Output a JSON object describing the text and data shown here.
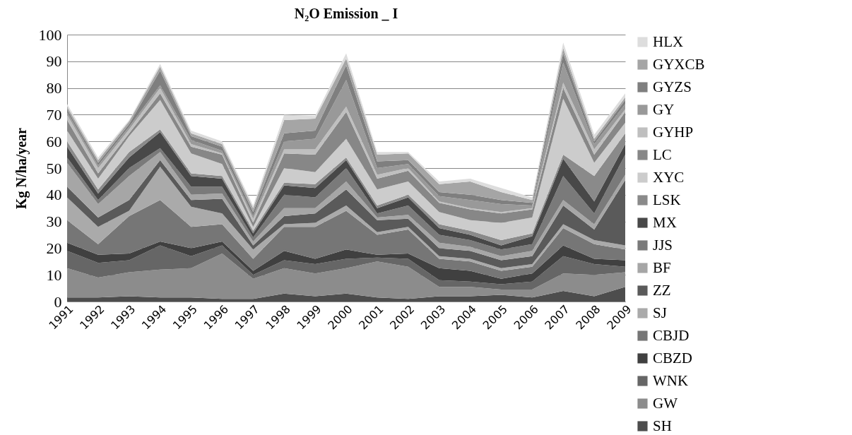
{
  "chart_data": {
    "type": "area",
    "stacked": true,
    "title": "N₂O Emission _ I",
    "ylabel": "Kg N/ha/year",
    "categories": [
      "1991",
      "1992",
      "1993",
      "1994",
      "1995",
      "1996",
      "1997",
      "1998",
      "1999",
      "2000",
      "2001",
      "2002",
      "2003",
      "2004",
      "2005",
      "2006",
      "2007",
      "2008",
      "2009"
    ],
    "ylim": [
      0,
      100
    ],
    "yticks": [
      0,
      10,
      20,
      30,
      40,
      50,
      60,
      70,
      80,
      90,
      100
    ],
    "grid": "y",
    "legend": "right",
    "series": [
      {
        "name": "SH",
        "color": "#4d4d4d",
        "values": [
          1.5,
          1.5,
          2,
          1.5,
          1.5,
          1,
          1,
          3,
          2,
          3,
          1.5,
          1,
          2,
          2,
          2.5,
          1.5,
          4,
          2,
          5.5
        ]
      },
      {
        "name": "GW",
        "color": "#8c8c8c",
        "values": [
          11,
          7.5,
          9,
          10.5,
          11,
          17,
          7.5,
          9.5,
          8.5,
          9.5,
          13.5,
          12,
          3.5,
          3.5,
          2,
          3,
          6.5,
          8,
          5.5
        ]
      },
      {
        "name": "WNK",
        "color": "#666666",
        "values": [
          6.5,
          5.5,
          4.5,
          9,
          4.5,
          3,
          1.5,
          3,
          3.5,
          3.5,
          1.5,
          3,
          2.5,
          2,
          2,
          3,
          6.5,
          4,
          2
        ]
      },
      {
        "name": "CBZD",
        "color": "#404040",
        "values": [
          3,
          3,
          2.5,
          1.5,
          3,
          1.5,
          1.5,
          3.5,
          2,
          3.5,
          1,
          2,
          4.5,
          4,
          2,
          3,
          4,
          2,
          2.5
        ]
      },
      {
        "name": "CBJD",
        "color": "#767676",
        "values": [
          8.5,
          4,
          14,
          15.5,
          8,
          6.5,
          4.5,
          9,
          12,
          14.5,
          7.5,
          9,
          3.5,
          3.5,
          3,
          2.5,
          6.5,
          5.5,
          4
        ]
      },
      {
        "name": "SJ",
        "color": "#aaaaaa",
        "values": [
          8.5,
          6.5,
          2,
          12.5,
          7.5,
          4,
          3.5,
          1,
          1.5,
          2,
          1,
          1,
          1,
          1,
          1,
          1,
          1.5,
          1.5,
          1.5
        ]
      },
      {
        "name": "ZZ",
        "color": "#5a5a5a",
        "values": [
          4,
          3.5,
          4,
          2.5,
          2.5,
          5.5,
          1.5,
          3,
          3.5,
          6,
          4.5,
          3,
          3,
          3,
          3,
          3,
          7,
          4,
          24.5
        ]
      },
      {
        "name": "BF",
        "color": "#a6a6a6",
        "values": [
          9,
          5,
          9,
          3,
          2,
          2,
          1.5,
          3,
          2,
          3,
          1,
          1.5,
          2,
          1.5,
          1.5,
          2,
          2,
          2,
          2
        ]
      },
      {
        "name": "JJS",
        "color": "#7a7a7a",
        "values": [
          2,
          1.5,
          3,
          1.5,
          3,
          2.5,
          1.5,
          5,
          4,
          5,
          1.5,
          3.5,
          3,
          2.5,
          2.5,
          2.5,
          9,
          4,
          7.5
        ]
      },
      {
        "name": "MX",
        "color": "#484848",
        "values": [
          4,
          2.5,
          4,
          6,
          4,
          3,
          1.5,
          3.5,
          3.5,
          3,
          2,
          3,
          2.5,
          2,
          1.5,
          3,
          6.5,
          4.5,
          4
        ]
      },
      {
        "name": "LSK",
        "color": "#8a8a8a",
        "values": [
          2,
          1.5,
          2,
          1,
          1,
          1,
          1,
          1,
          1.5,
          1,
          1,
          1,
          1.5,
          1.5,
          2,
          1,
          1.5,
          9.5,
          4
        ]
      },
      {
        "name": "XYC",
        "color": "#cccccc",
        "values": [
          4,
          4,
          6,
          11,
          7.5,
          4.5,
          1.5,
          5.5,
          4.5,
          7,
          6,
          5,
          4.5,
          4,
          6.5,
          6,
          21,
          5,
          4
        ]
      },
      {
        "name": "LC",
        "color": "#878787",
        "values": [
          4,
          2,
          1,
          2.5,
          2.5,
          3.5,
          1.5,
          5.5,
          6.5,
          10,
          4,
          4,
          3.5,
          4,
          3.5,
          3,
          4,
          3,
          4
        ]
      },
      {
        "name": "GYHP",
        "color": "#bfbfbf",
        "values": [
          2,
          2,
          1.5,
          2,
          1,
          0.5,
          1.5,
          1.5,
          2,
          2,
          1.5,
          1,
          0.5,
          0.5,
          0.5,
          0.5,
          2,
          2,
          1
        ]
      },
      {
        "name": "GY",
        "color": "#999999",
        "values": [
          1,
          1,
          1,
          1,
          1.5,
          1,
          1,
          3,
          4,
          10,
          2.5,
          1.5,
          2,
          3,
          3,
          1,
          7.5,
          2,
          2
        ]
      },
      {
        "name": "GYZS",
        "color": "#7f7f7f",
        "values": [
          1,
          1,
          1,
          5.5,
          1.5,
          1.5,
          1.5,
          3,
          3,
          5.5,
          2.5,
          1.5,
          1.5,
          2,
          1.5,
          1,
          3.5,
          1,
          1.5
        ]
      },
      {
        "name": "GYXCB",
        "color": "#a5a5a5",
        "values": [
          1,
          1,
          1,
          1.5,
          1,
          1,
          1.5,
          5,
          4.5,
          2.5,
          2.5,
          2.5,
          3,
          5,
          3,
          1,
          2,
          1,
          1
        ]
      },
      {
        "name": "HLX",
        "color": "#dddddd",
        "values": [
          1,
          1,
          0.5,
          1,
          1,
          1,
          1,
          2,
          1,
          2,
          1,
          0.5,
          1,
          1,
          1.5,
          1,
          2,
          1.5,
          1.5
        ]
      }
    ]
  }
}
